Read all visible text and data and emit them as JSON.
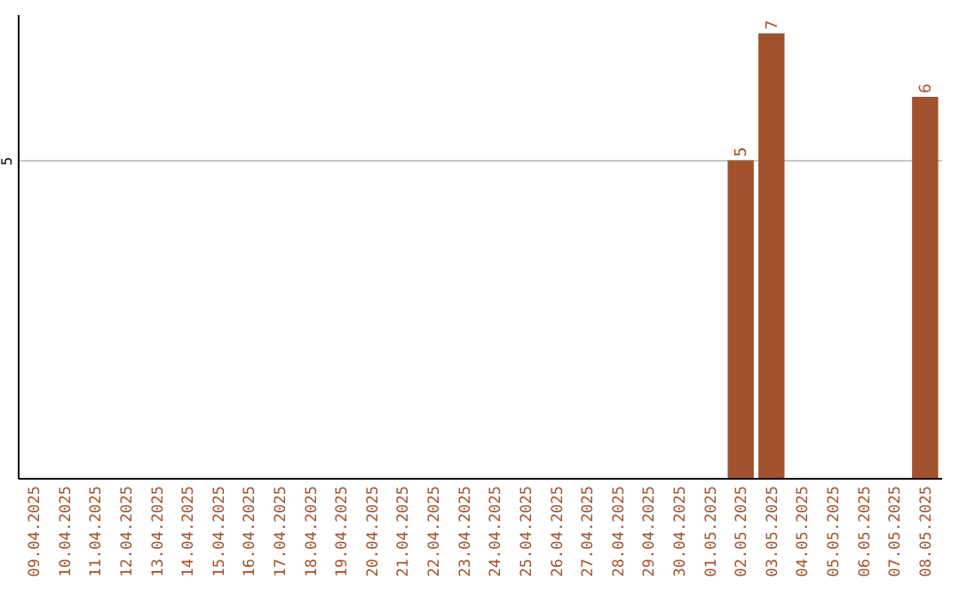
{
  "chart_data": {
    "type": "bar",
    "categories": [
      "09.04.2025",
      "10.04.2025",
      "11.04.2025",
      "12.04.2025",
      "13.04.2025",
      "14.04.2025",
      "15.04.2025",
      "16.04.2025",
      "17.04.2025",
      "18.04.2025",
      "19.04.2025",
      "20.04.2025",
      "21.04.2025",
      "22.04.2025",
      "23.04.2025",
      "24.04.2025",
      "25.04.2025",
      "26.04.2025",
      "27.04.2025",
      "28.04.2025",
      "29.04.2025",
      "30.04.2025",
      "01.05.2025",
      "02.05.2025",
      "03.05.2025",
      "04.05.2025",
      "05.05.2025",
      "06.05.2025",
      "07.05.2025",
      "08.05.2025"
    ],
    "values": [
      null,
      null,
      null,
      null,
      null,
      null,
      null,
      null,
      null,
      null,
      null,
      null,
      null,
      null,
      null,
      null,
      null,
      null,
      null,
      null,
      null,
      null,
      null,
      5,
      7,
      null,
      null,
      null,
      null,
      6
    ],
    "color": "#a0522d",
    "ylim": [
      0,
      7.3
    ],
    "yticks": [
      5
    ],
    "grid": "y",
    "data_labels": true
  }
}
